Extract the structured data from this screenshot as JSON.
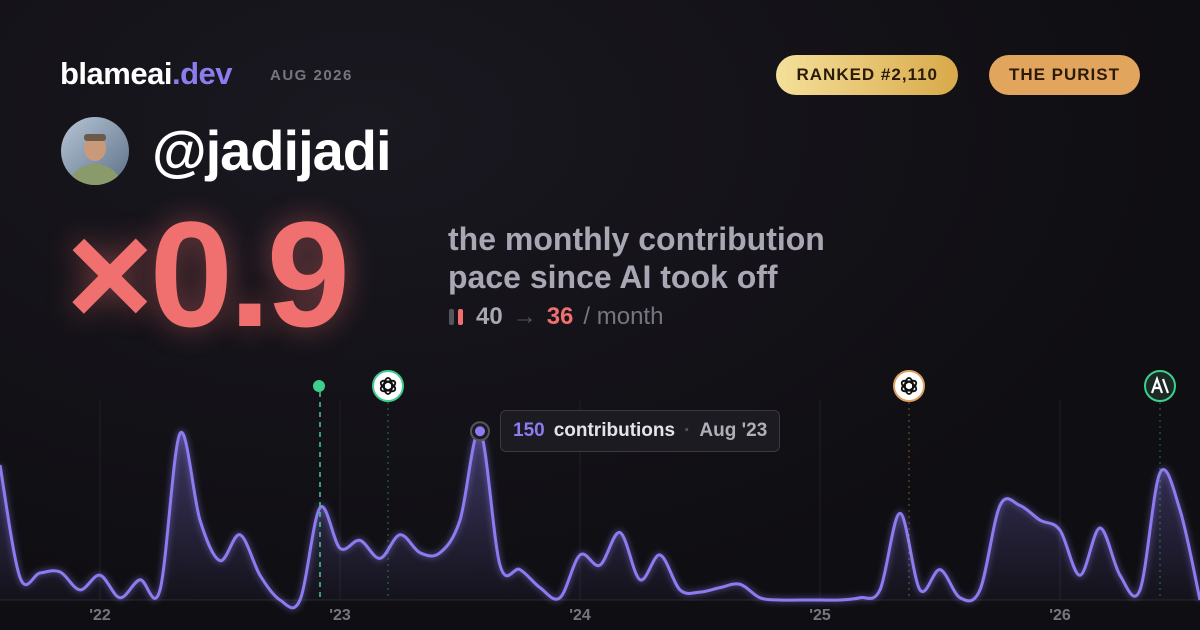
{
  "header": {
    "brand": "blameai",
    "brand_suffix": ".dev",
    "date": "AUG 2026",
    "badges": [
      "RANKED #2,110",
      "THE PURIST"
    ],
    "handle": "@jadijadi"
  },
  "headline": {
    "multiplier": "×0.9",
    "description": [
      "the monthly contribution",
      "pace since AI took off"
    ],
    "before": 40,
    "arrow": "→",
    "after": 36,
    "unit": "/ month"
  },
  "chart_data": {
    "type": "area",
    "categories": [
      null,
      null,
      null,
      null,
      null,
      "'22",
      null,
      null,
      null,
      null,
      null,
      null,
      null,
      null,
      null,
      null,
      null,
      "'23",
      null,
      null,
      null,
      null,
      null,
      null,
      null,
      null,
      null,
      null,
      null,
      "'24",
      null,
      null,
      null,
      null,
      null,
      null,
      null,
      null,
      null,
      null,
      null,
      "'25",
      null,
      null,
      null,
      null,
      null,
      null,
      null,
      null,
      null,
      null,
      null,
      "'26",
      null,
      null,
      null,
      null,
      null,
      null,
      null
    ],
    "values": [
      120,
      20,
      24,
      25,
      9,
      22,
      2,
      18,
      9,
      148,
      71,
      35,
      58,
      22,
      0,
      0,
      82,
      46,
      53,
      37,
      58,
      42,
      42,
      71,
      150,
      31,
      27,
      11,
      2,
      40,
      31,
      60,
      18,
      40,
      9,
      7,
      11,
      14,
      2,
      0,
      0,
      0,
      0,
      2,
      9,
      77,
      9,
      27,
      2,
      9,
      84,
      84,
      71,
      62,
      22,
      64,
      22,
      9,
      113,
      80,
      0
    ],
    "color": "#8b7cf0",
    "ylim": [
      0,
      200
    ],
    "tooltip": {
      "label": "contributions",
      "date": "Aug '23"
    }
  }
}
